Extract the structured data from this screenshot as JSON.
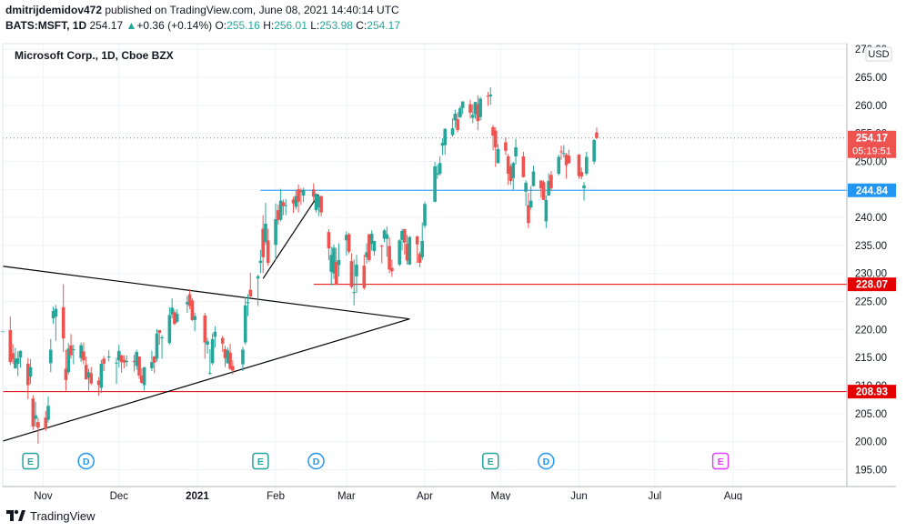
{
  "header": {
    "author": "dmitrijdemidov472",
    "published_text": "published on TradingView.com, June 08, 2021 14:40:14 UTC",
    "symbol_line": "BATS:MSFT, 1D",
    "last": "254.17",
    "change_arrow": "▲",
    "change": "+0.36 (+0.14%)",
    "o_label": "O:",
    "o_value": "255.16",
    "h_label": "H:",
    "h_value": "256.01",
    "l_label": "L:",
    "l_value": "253.98",
    "c_label": "C:",
    "c_value": "254.17"
  },
  "footer": {
    "brand": "TradingView"
  },
  "chart_data": {
    "type": "candlestick",
    "title": "Microsoft Corp., 1D, Cboe BZX",
    "currency": "USD",
    "ylim": [
      192,
      271
    ],
    "y_ticks": [
      195,
      200,
      205,
      210,
      215,
      220,
      225,
      230,
      235,
      240,
      245,
      250,
      255,
      260,
      265,
      270
    ],
    "x_ticks": [
      "Nov",
      "Dec",
      "2021",
      "Feb",
      "Mar",
      "Apr",
      "May",
      "Jun",
      "Jul",
      "Aug"
    ],
    "x_tick_dates": [
      "2020-11-01",
      "2020-12-01",
      "2021-01-01",
      "2021-02-01",
      "2021-03-01",
      "2021-04-01",
      "2021-05-01",
      "2021-06-01",
      "2021-07-01",
      "2021-08-01"
    ],
    "x_range": [
      "2020-10-16",
      "2021-09-15"
    ],
    "candles": [
      [
        "2020-10-16",
        219.7,
        221.0,
        217.2,
        219.7
      ],
      [
        "2020-10-19",
        219.9,
        222.3,
        213.7,
        214.2
      ],
      [
        "2020-10-20",
        215.8,
        217.4,
        213.9,
        214.7
      ],
      [
        "2020-10-21",
        213.1,
        216.7,
        213.0,
        214.8
      ],
      [
        "2020-10-22",
        213.9,
        216.1,
        211.7,
        214.9
      ],
      [
        "2020-10-23",
        215.0,
        216.3,
        213.2,
        216.2
      ],
      [
        "2020-10-26",
        213.9,
        214.9,
        207.6,
        210.1
      ],
      [
        "2020-10-27",
        211.6,
        214.7,
        210.3,
        213.3
      ],
      [
        "2020-10-28",
        207.7,
        208.3,
        202.1,
        202.7
      ],
      [
        "2020-10-29",
        204.1,
        207.1,
        202.7,
        204.7
      ],
      [
        "2020-10-30",
        203.5,
        204.3,
        199.6,
        202.5
      ],
      [
        "2020-11-02",
        204.3,
        205.5,
        201.9,
        202.3
      ],
      [
        "2020-11-03",
        203.9,
        208.1,
        203.4,
        206.4
      ],
      [
        "2020-11-04",
        214.0,
        218.3,
        212.4,
        216.4
      ],
      [
        "2020-11-05",
        222.0,
        224.1,
        221.0,
        223.3
      ],
      [
        "2020-11-06",
        222.3,
        224.4,
        218.0,
        223.7
      ],
      [
        "2020-11-09",
        224.0,
        228.1,
        216.0,
        218.4
      ],
      [
        "2020-11-10",
        213.0,
        216.4,
        209.1,
        211.0
      ],
      [
        "2020-11-11",
        212.4,
        217.6,
        212.0,
        216.6
      ],
      [
        "2020-11-12",
        217.2,
        219.2,
        214.8,
        215.4
      ],
      [
        "2020-11-13",
        216.4,
        217.3,
        213.8,
        216.5
      ],
      [
        "2020-11-16",
        214.9,
        217.7,
        214.2,
        217.2
      ],
      [
        "2020-11-17",
        216.1,
        217.7,
        213.8,
        214.5
      ],
      [
        "2020-11-18",
        213.7,
        215.2,
        211.2,
        211.1
      ],
      [
        "2020-11-19",
        211.4,
        213.0,
        209.1,
        212.4
      ],
      [
        "2020-11-20",
        212.2,
        213.3,
        210.1,
        210.4
      ],
      [
        "2020-11-23",
        210.9,
        211.5,
        208.2,
        210.1
      ],
      [
        "2020-11-24",
        209.6,
        214.6,
        208.7,
        213.9
      ],
      [
        "2020-11-25",
        214.8,
        215.3,
        212.6,
        213.9
      ],
      [
        "2020-11-27",
        215.1,
        216.3,
        214.3,
        215.2
      ],
      [
        "2020-11-30",
        214.1,
        215.0,
        210.3,
        214.1
      ],
      [
        "2020-12-01",
        214.5,
        217.3,
        213.2,
        216.2
      ],
      [
        "2020-12-02",
        215.4,
        215.5,
        212.3,
        214.2
      ],
      [
        "2020-12-03",
        214.6,
        215.4,
        213.1,
        214.1
      ],
      [
        "2020-12-04",
        214.2,
        215.4,
        213.4,
        214.4
      ],
      [
        "2020-12-07",
        214.4,
        215.5,
        212.5,
        214.2
      ],
      [
        "2020-12-08",
        213.5,
        216.4,
        212.8,
        216.0
      ],
      [
        "2020-12-09",
        215.2,
        215.2,
        211.2,
        211.8
      ],
      [
        "2020-12-10",
        211.8,
        213.1,
        210.4,
        210.5
      ],
      [
        "2020-12-11",
        210.1,
        213.3,
        209.1,
        213.3
      ],
      [
        "2020-12-14",
        213.1,
        216.2,
        212.6,
        214.2
      ],
      [
        "2020-12-15",
        215.2,
        215.3,
        212.2,
        214.1
      ],
      [
        "2020-12-16",
        214.8,
        220.1,
        214.3,
        219.3
      ],
      [
        "2020-12-17",
        219.9,
        219.9,
        217.3,
        219.4
      ],
      [
        "2020-12-18",
        218.6,
        219.0,
        214.8,
        218.6
      ],
      [
        "2020-12-21",
        217.6,
        224.0,
        217.3,
        222.6
      ],
      [
        "2020-12-22",
        222.7,
        225.6,
        222.0,
        223.9
      ],
      [
        "2020-12-23",
        223.1,
        223.6,
        220.8,
        221.0
      ],
      [
        "2020-12-24",
        221.4,
        223.6,
        221.2,
        222.8
      ],
      [
        "2020-12-28",
        224.5,
        226.0,
        223.0,
        224.9
      ],
      [
        "2020-12-29",
        226.3,
        227.2,
        223.6,
        224.2
      ],
      [
        "2020-12-30",
        225.2,
        225.6,
        221.5,
        221.7
      ],
      [
        "2020-12-31",
        221.7,
        223.0,
        219.7,
        222.4
      ],
      [
        "2021-01-04",
        222.5,
        223.0,
        214.8,
        217.7
      ],
      [
        "2021-01-05",
        217.3,
        218.5,
        215.7,
        217.9
      ],
      [
        "2021-01-06",
        212.2,
        216.5,
        211.9,
        212.3
      ],
      [
        "2021-01-07",
        214.0,
        219.3,
        213.7,
        218.3
      ],
      [
        "2021-01-08",
        218.7,
        220.6,
        216.8,
        219.6
      ],
      [
        "2021-01-11",
        218.5,
        218.9,
        216.0,
        217.5
      ],
      [
        "2021-01-12",
        216.5,
        217.1,
        213.3,
        214.9
      ],
      [
        "2021-01-13",
        214.0,
        216.8,
        213.9,
        216.3
      ],
      [
        "2021-01-14",
        215.9,
        217.5,
        212.8,
        213.0
      ],
      [
        "2021-01-15",
        213.5,
        214.5,
        212.0,
        212.7
      ],
      [
        "2021-01-19",
        213.8,
        216.9,
        212.6,
        216.4
      ],
      [
        "2021-01-20",
        217.7,
        225.8,
        217.3,
        224.3
      ],
      [
        "2021-01-21",
        224.7,
        226.3,
        222.4,
        224.9
      ],
      [
        "2021-01-22",
        227.1,
        230.1,
        225.8,
        225.9
      ],
      [
        "2021-01-25",
        229.1,
        229.8,
        224.2,
        229.5
      ],
      [
        "2021-01-26",
        231.9,
        234.2,
        230.1,
        232.3
      ],
      [
        "2021-01-27",
        238.0,
        240.4,
        230.1,
        232.9
      ],
      [
        "2021-01-28",
        235.6,
        242.6,
        235.1,
        238.9
      ],
      [
        "2021-01-29",
        235.9,
        238.0,
        231.4,
        231.9
      ],
      [
        "2021-02-01",
        235.1,
        242.5,
        232.4,
        239.7
      ],
      [
        "2021-02-02",
        241.3,
        242.3,
        238.7,
        239.5
      ],
      [
        "2021-02-03",
        239.6,
        245.1,
        239.3,
        243.0
      ],
      [
        "2021-02-04",
        242.7,
        243.2,
        240.4,
        242.0
      ],
      [
        "2021-02-05",
        242.2,
        243.3,
        240.4,
        242.2
      ],
      [
        "2021-02-08",
        243.2,
        243.7,
        240.8,
        242.5
      ],
      [
        "2021-02-09",
        241.9,
        244.8,
        241.4,
        243.8
      ],
      [
        "2021-02-10",
        245.0,
        245.9,
        240.9,
        242.8
      ],
      [
        "2021-02-11",
        244.8,
        245.2,
        242.2,
        244.5
      ],
      [
        "2021-02-12",
        243.9,
        245.3,
        242.7,
        244.9
      ],
      [
        "2021-02-16",
        245.0,
        246.1,
        242.9,
        243.7
      ],
      [
        "2021-02-17",
        241.3,
        244.3,
        240.9,
        244.2
      ],
      [
        "2021-02-18",
        241.8,
        243.9,
        240.2,
        243.8
      ],
      [
        "2021-02-19",
        243.8,
        243.9,
        240.2,
        240.9
      ],
      [
        "2021-02-22",
        237.4,
        237.9,
        232.4,
        234.5
      ],
      [
        "2021-02-23",
        230.3,
        234.8,
        227.9,
        233.3
      ],
      [
        "2021-02-24",
        230.0,
        235.2,
        229.0,
        234.6
      ],
      [
        "2021-02-25",
        232.1,
        234.6,
        227.9,
        228.0
      ],
      [
        "2021-02-26",
        231.5,
        235.4,
        229.5,
        232.4
      ],
      [
        "2021-03-01",
        235.9,
        237.5,
        233.2,
        236.9
      ],
      [
        "2021-03-02",
        237.0,
        237.3,
        233.5,
        233.9
      ],
      [
        "2021-03-03",
        232.2,
        233.6,
        227.3,
        227.6
      ],
      [
        "2021-03-04",
        226.7,
        232.5,
        224.3,
        226.7
      ],
      [
        "2021-03-05",
        229.5,
        233.3,
        226.5,
        231.6
      ],
      [
        "2021-03-08",
        231.4,
        233.4,
        227.1,
        227.4
      ],
      [
        "2021-03-09",
        232.9,
        235.4,
        231.8,
        233.8
      ],
      [
        "2021-03-10",
        237.0,
        237.0,
        232.0,
        232.4
      ],
      [
        "2021-03-11",
        235.3,
        237.7,
        234.1,
        237.1
      ],
      [
        "2021-03-12",
        234.0,
        235.8,
        233.2,
        235.8
      ],
      [
        "2021-03-15",
        234.96,
        235.19,
        231.81,
        234.8
      ],
      [
        "2021-03-16",
        236.2,
        237.9,
        235.6,
        237.7
      ],
      [
        "2021-03-17",
        236.2,
        238.4,
        233.0,
        237.0
      ],
      [
        "2021-03-18",
        234.9,
        236.5,
        230.1,
        230.7
      ],
      [
        "2021-03-19",
        231.0,
        232.5,
        229.4,
        230.4
      ],
      [
        "2021-03-22",
        231.6,
        236.1,
        231.3,
        235.9
      ],
      [
        "2021-03-23",
        236.0,
        238.0,
        234.1,
        237.6
      ],
      [
        "2021-03-24",
        237.9,
        238.0,
        233.4,
        235.5
      ],
      [
        "2021-03-25",
        235.3,
        236.9,
        231.6,
        232.3
      ],
      [
        "2021-03-26",
        231.6,
        236.7,
        231.5,
        236.5
      ],
      [
        "2021-03-29",
        236.6,
        236.8,
        231.9,
        235.2
      ],
      [
        "2021-03-30",
        233.5,
        233.9,
        231.1,
        231.9
      ],
      [
        "2021-03-31",
        232.9,
        239.1,
        232.4,
        235.8
      ],
      [
        "2021-04-01",
        238.5,
        242.8,
        238.1,
        242.4
      ],
      [
        "2021-04-05",
        242.8,
        249.9,
        242.7,
        249.1
      ],
      [
        "2021-04-06",
        247.6,
        249.4,
        246.9,
        247.9
      ],
      [
        "2021-04-07",
        247.8,
        250.9,
        247.5,
        249.7
      ],
      [
        "2021-04-08",
        252.8,
        254.1,
        251.1,
        253.3
      ],
      [
        "2021-04-09",
        252.9,
        255.9,
        251.2,
        255.8
      ],
      [
        "2021-04-12",
        254.7,
        257.7,
        254.4,
        255.9
      ],
      [
        "2021-04-13",
        257.3,
        259.2,
        256.0,
        258.5
      ],
      [
        "2021-04-14",
        257.5,
        258.8,
        255.2,
        255.6
      ],
      [
        "2021-04-15",
        257.9,
        259.9,
        257.7,
        259.5
      ],
      [
        "2021-04-16",
        259.5,
        260.6,
        258.4,
        260.7
      ],
      [
        "2021-04-19",
        260.2,
        261.0,
        257.6,
        258.7
      ],
      [
        "2021-04-20",
        257.8,
        260.2,
        256.8,
        258.3
      ],
      [
        "2021-04-21",
        258.4,
        260.2,
        257.6,
        260.6
      ],
      [
        "2021-04-22",
        260.2,
        261.8,
        255.6,
        257.2
      ],
      [
        "2021-04-23",
        257.9,
        261.5,
        257.3,
        261.2
      ],
      [
        "2021-04-26",
        261.7,
        262.4,
        259.9,
        261.6
      ],
      [
        "2021-04-27",
        261.6,
        263.2,
        260.1,
        261.9
      ],
      [
        "2021-04-28",
        256.1,
        256.5,
        252.0,
        254.6
      ],
      [
        "2021-04-29",
        255.5,
        256.1,
        249.0,
        252.5
      ],
      [
        "2021-04-30",
        249.7,
        253.1,
        249.6,
        252.2
      ],
      [
        "2021-05-03",
        253.4,
        254.3,
        251.1,
        251.9
      ],
      [
        "2021-05-04",
        250.9,
        251.3,
        245.8,
        247.8
      ],
      [
        "2021-05-05",
        249.1,
        249.5,
        245.8,
        246.5
      ],
      [
        "2021-05-06",
        247.0,
        249.9,
        244.9,
        249.7
      ],
      [
        "2021-05-07",
        250.9,
        254.0,
        249.4,
        252.5
      ],
      [
        "2021-05-10",
        250.9,
        251.7,
        247.1,
        247.2
      ],
      [
        "2021-05-11",
        244.6,
        246.6,
        242.1,
        246.2
      ],
      [
        "2021-05-12",
        242.2,
        244.4,
        238.1,
        239.0
      ],
      [
        "2021-05-13",
        241.8,
        245.6,
        241.4,
        243.0
      ],
      [
        "2021-05-14",
        245.6,
        249.2,
        245.5,
        248.2
      ],
      [
        "2021-05-17",
        246.6,
        246.6,
        243.5,
        245.2
      ],
      [
        "2021-05-18",
        246.3,
        246.6,
        243.5,
        243.1
      ],
      [
        "2021-05-19",
        239.3,
        243.9,
        238.1,
        243.1
      ],
      [
        "2021-05-20",
        243.9,
        247.9,
        243.9,
        246.5
      ],
      [
        "2021-05-21",
        247.6,
        248.3,
        244.7,
        245.2
      ],
      [
        "2021-05-24",
        247.8,
        251.2,
        247.5,
        250.8
      ],
      [
        "2021-05-25",
        251.8,
        252.8,
        250.3,
        251.7
      ],
      [
        "2021-05-26",
        251.4,
        252.9,
        250.7,
        251.5
      ],
      [
        "2021-05-27",
        251.2,
        251.5,
        246.9,
        249.3
      ],
      [
        "2021-05-28",
        251.0,
        252.1,
        249.6,
        249.7
      ],
      [
        "2021-06-01",
        251.2,
        251.3,
        246.9,
        247.4
      ],
      [
        "2021-06-02",
        248.1,
        248.9,
        246.8,
        247.3
      ],
      [
        "2021-06-03",
        245.2,
        246.3,
        243.0,
        245.7
      ],
      [
        "2021-06-04",
        247.8,
        251.7,
        247.5,
        250.8
      ],
      [
        "2021-06-07",
        249.98,
        254.0,
        249.5,
        253.8
      ],
      [
        "2021-06-08",
        255.16,
        256.01,
        253.98,
        254.17
      ]
    ],
    "horizontal_lines": [
      {
        "price": 244.84,
        "label": "244.84",
        "color": "#2196f3",
        "from": "2021-01-26"
      },
      {
        "price": 228.07,
        "label": "228.07",
        "color": "#e50000",
        "from": "2021-02-16"
      },
      {
        "price": 208.93,
        "label": "208.93",
        "color": "#e50000",
        "from": "2020-10-16"
      }
    ],
    "last_price": {
      "price": 254.17,
      "label": "254.17",
      "countdown": "05:19:51",
      "color": "#ef5350"
    },
    "trend_lines": [
      {
        "points": [
          [
            "2020-10-16",
            231.3
          ],
          [
            "2021-03-26",
            221.9
          ]
        ],
        "color": "#000000"
      },
      {
        "points": [
          [
            "2020-10-16",
            200.1
          ],
          [
            "2021-03-26",
            221.9
          ]
        ],
        "color": "#000000"
      },
      {
        "points": [
          [
            "2021-01-27",
            229.1
          ],
          [
            "2021-02-18",
            244.1
          ]
        ],
        "color": "#000000"
      }
    ],
    "events": [
      {
        "type": "E",
        "date": "2020-10-27",
        "color": "#26a69a"
      },
      {
        "type": "D",
        "date": "2020-11-18",
        "color": "#2196f3"
      },
      {
        "type": "E",
        "date": "2021-01-26",
        "color": "#26a69a"
      },
      {
        "type": "D",
        "date": "2021-02-17",
        "color": "#2196f3"
      },
      {
        "type": "E",
        "date": "2021-04-27",
        "color": "#26a69a"
      },
      {
        "type": "D",
        "date": "2021-05-19",
        "color": "#2196f3"
      },
      {
        "type": "E",
        "date": "2021-07-27",
        "color": "#e040fb"
      }
    ],
    "colors": {
      "up": "#26a69a",
      "down": "#ef5350",
      "grid": "#f0f3fa",
      "axis_text": "#131722"
    }
  }
}
